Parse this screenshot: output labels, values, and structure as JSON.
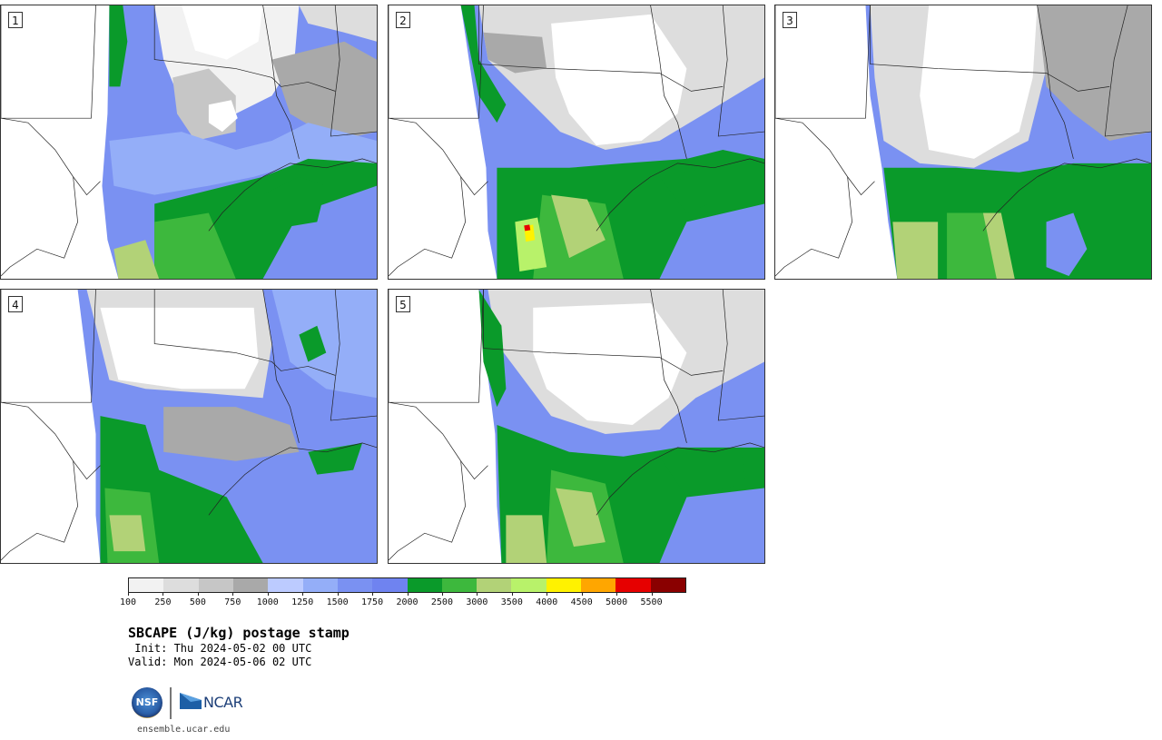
{
  "panels": [
    {
      "label": "1"
    },
    {
      "label": "2"
    },
    {
      "label": "3"
    },
    {
      "label": "4"
    },
    {
      "label": "5"
    }
  ],
  "colorbar": {
    "tick_labels": [
      "100",
      "250",
      "500",
      "750",
      "1000",
      "1250",
      "1500",
      "1750",
      "2000",
      "2500",
      "3000",
      "3500",
      "4000",
      "4500",
      "5000",
      "5500"
    ],
    "colors": [
      "#f2f2f2",
      "#dddddd",
      "#c6c6c6",
      "#a9a9a9",
      "#bccbff",
      "#94aef8",
      "#7a91f2",
      "#6f83f0",
      "#0a9a2a",
      "#3db83d",
      "#b2d277",
      "#b8f26a",
      "#fff200",
      "#ffa600",
      "#e60000",
      "#8a0000"
    ]
  },
  "title": "SBCAPE (J/kg) postage stamp",
  "init": " Init: Thu 2024-05-02 00 UTC",
  "valid": "Valid: Mon 2024-05-06 02 UTC",
  "logos": {
    "nsf": "NSF",
    "ncar": "NCAR"
  },
  "footer_url": "ensemble.ucar.edu"
}
